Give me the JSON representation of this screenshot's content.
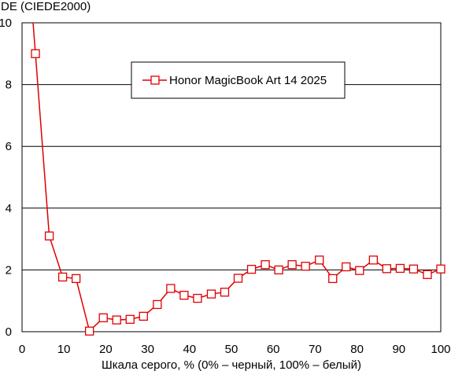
{
  "chart_data": {
    "type": "line",
    "title": "",
    "ylabel": "DE (CIEDE2000)",
    "xlabel": "Шкала серого, % (0% – черный, 100% – белый)",
    "xlim": [
      0,
      100
    ],
    "ylim": [
      0,
      10
    ],
    "xticks": [
      0,
      10,
      20,
      30,
      40,
      50,
      60,
      70,
      80,
      90,
      100
    ],
    "yticks": [
      0,
      2,
      4,
      6,
      8,
      10
    ],
    "grid": "horizontal",
    "legend_position": "top-right",
    "series": [
      {
        "name": "Honor MagicBook Art 14 2025",
        "color": "#e00000",
        "marker": "square",
        "x": [
          3.2,
          6.5,
          9.7,
          12.9,
          16.1,
          19.4,
          22.6,
          25.8,
          29.0,
          32.3,
          35.5,
          38.7,
          41.9,
          45.2,
          48.4,
          51.6,
          54.8,
          58.1,
          61.3,
          64.5,
          67.7,
          71.0,
          74.2,
          77.4,
          80.6,
          83.9,
          87.1,
          90.3,
          93.5,
          96.8,
          100
        ],
        "y": [
          9.0,
          3.1,
          1.77,
          1.72,
          0.02,
          0.45,
          0.38,
          0.4,
          0.5,
          0.88,
          1.4,
          1.18,
          1.08,
          1.22,
          1.28,
          1.73,
          2.02,
          2.17,
          2.0,
          2.17,
          2.12,
          2.32,
          1.72,
          2.1,
          1.98,
          2.32,
          2.04,
          2.05,
          2.03,
          1.85,
          2.03
        ]
      }
    ]
  }
}
